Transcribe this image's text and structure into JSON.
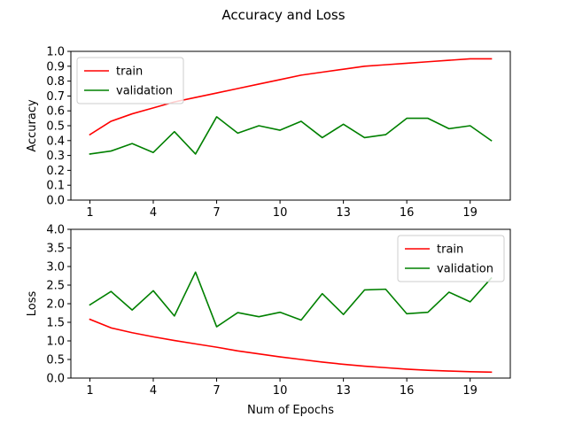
{
  "figure": {
    "title": "Accuracy and Loss"
  },
  "chart_data": [
    {
      "type": "line",
      "title": "",
      "xlabel": "",
      "ylabel": "Accuracy",
      "x": [
        1,
        2,
        3,
        4,
        5,
        6,
        7,
        8,
        9,
        10,
        11,
        12,
        13,
        14,
        15,
        16,
        17,
        18,
        19,
        20
      ],
      "xlim": [
        0.1,
        20.9
      ],
      "ylim": [
        0.0,
        1.0
      ],
      "xticks": [
        1,
        4,
        7,
        10,
        13,
        16,
        19
      ],
      "yticks": [
        0.0,
        0.1,
        0.2,
        0.3,
        0.4,
        0.5,
        0.6,
        0.7,
        0.8,
        0.9,
        1.0
      ],
      "ytick_labels": [
        "0.0",
        "0.1",
        "0.2",
        "0.3",
        "0.4",
        "0.5",
        "0.6",
        "0.7",
        "0.8",
        "0.9",
        "1.0"
      ],
      "grid": false,
      "legend": "upper-left",
      "series": [
        {
          "name": "train",
          "color": "#ff0000",
          "values": [
            0.44,
            0.53,
            0.58,
            0.62,
            0.66,
            0.69,
            0.72,
            0.75,
            0.78,
            0.81,
            0.84,
            0.86,
            0.88,
            0.9,
            0.91,
            0.92,
            0.93,
            0.94,
            0.95,
            0.95
          ]
        },
        {
          "name": "validation",
          "color": "#008000",
          "values": [
            0.31,
            0.33,
            0.38,
            0.32,
            0.46,
            0.31,
            0.56,
            0.45,
            0.5,
            0.47,
            0.53,
            0.42,
            0.51,
            0.42,
            0.44,
            0.55,
            0.55,
            0.48,
            0.5,
            0.4
          ]
        }
      ]
    },
    {
      "type": "line",
      "title": "",
      "xlabel": "Num of Epochs",
      "ylabel": "Loss",
      "x": [
        1,
        2,
        3,
        4,
        5,
        6,
        7,
        8,
        9,
        10,
        11,
        12,
        13,
        14,
        15,
        16,
        17,
        18,
        19,
        20
      ],
      "xlim": [
        0.1,
        20.9
      ],
      "ylim": [
        0.0,
        4.0
      ],
      "xticks": [
        1,
        4,
        7,
        10,
        13,
        16,
        19
      ],
      "yticks": [
        0.0,
        0.5,
        1.0,
        1.5,
        2.0,
        2.5,
        3.0,
        3.5,
        4.0
      ],
      "ytick_labels": [
        "0.0",
        "0.5",
        "1.0",
        "1.5",
        "2.0",
        "2.5",
        "3.0",
        "3.5",
        "4.0"
      ],
      "grid": false,
      "legend": "upper-right",
      "series": [
        {
          "name": "train",
          "color": "#ff0000",
          "values": [
            1.58,
            1.35,
            1.22,
            1.11,
            1.01,
            0.92,
            0.83,
            0.73,
            0.65,
            0.57,
            0.5,
            0.43,
            0.37,
            0.32,
            0.28,
            0.24,
            0.21,
            0.19,
            0.17,
            0.16
          ]
        },
        {
          "name": "validation",
          "color": "#008000",
          "values": [
            1.97,
            2.33,
            1.83,
            2.35,
            1.67,
            2.85,
            1.38,
            1.76,
            1.65,
            1.77,
            1.56,
            2.27,
            1.71,
            2.37,
            2.39,
            1.73,
            1.77,
            2.31,
            2.05,
            2.69
          ]
        }
      ]
    }
  ]
}
